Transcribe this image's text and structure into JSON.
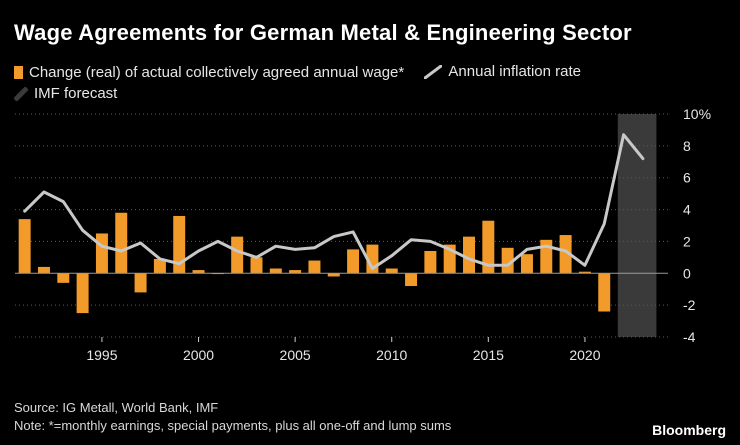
{
  "title": "Wage Agreements for German Metal & Engineering Sector",
  "legend": {
    "wage_label": "Change (real) of actual collectively agreed annual wage*",
    "inflation_label": "Annual inflation rate",
    "forecast_label": "IMF forecast"
  },
  "colors": {
    "bar": "#f29b2b",
    "line": "#c8c8c8",
    "forecast": "#3a3a3a",
    "zero_line": "#9a9a9a",
    "grid": "#5a5a5a"
  },
  "source": "Source: IG Metall, World Bank, IMF",
  "note": "Note: *=monthly earnings, special payments, plus all one-off and lump sums",
  "brand": "Bloomberg",
  "chart_data": {
    "type": "bar",
    "title": "Wage Agreements for German Metal & Engineering Sector",
    "xlabel": "",
    "ylabel": "",
    "ylim": [
      -4,
      10
    ],
    "yticks": [
      -4,
      -2,
      0,
      2,
      4,
      6,
      8,
      10
    ],
    "ytick_labels": [
      "-4",
      "-2",
      "0",
      "2",
      "4",
      "6",
      "8",
      "10%"
    ],
    "xticks": [
      1995,
      2000,
      2005,
      2010,
      2015,
      2020
    ],
    "x_range": [
      1990.5,
      2024.3
    ],
    "forecast_range": [
      2021.7,
      2023.7
    ],
    "grid": true,
    "legend_position": "top-left",
    "series": [
      {
        "name": "Change (real) of actual collectively agreed annual wage*",
        "type": "bar",
        "x": [
          1991,
          1992,
          1993,
          1994,
          1995,
          1996,
          1997,
          1998,
          1999,
          2000,
          2001,
          2002,
          2003,
          2004,
          2005,
          2006,
          2007,
          2008,
          2009,
          2010,
          2011,
          2012,
          2013,
          2014,
          2015,
          2016,
          2017,
          2018,
          2019,
          2020,
          2021
        ],
        "values": [
          3.4,
          0.4,
          -0.6,
          -2.5,
          2.5,
          3.8,
          -1.2,
          0.9,
          3.6,
          0.2,
          0.0,
          2.3,
          1.0,
          0.3,
          0.2,
          0.8,
          -0.2,
          1.5,
          1.8,
          0.3,
          -0.8,
          1.4,
          1.8,
          2.3,
          3.3,
          1.6,
          1.2,
          2.1,
          2.4,
          0.1,
          -2.4
        ]
      },
      {
        "name": "Annual inflation rate",
        "type": "line",
        "x": [
          1991,
          1992,
          1993,
          1994,
          1995,
          1996,
          1997,
          1998,
          1999,
          2000,
          2001,
          2002,
          2003,
          2004,
          2005,
          2006,
          2007,
          2008,
          2009,
          2010,
          2011,
          2012,
          2013,
          2014,
          2015,
          2016,
          2017,
          2018,
          2019,
          2020,
          2021,
          2022,
          2023
        ],
        "values": [
          3.9,
          5.1,
          4.5,
          2.7,
          1.7,
          1.4,
          1.9,
          0.9,
          0.6,
          1.4,
          2.0,
          1.4,
          1.0,
          1.7,
          1.5,
          1.6,
          2.3,
          2.6,
          0.3,
          1.1,
          2.1,
          2.0,
          1.5,
          0.9,
          0.5,
          0.5,
          1.5,
          1.7,
          1.4,
          0.5,
          3.1,
          8.7,
          7.2
        ]
      }
    ]
  }
}
